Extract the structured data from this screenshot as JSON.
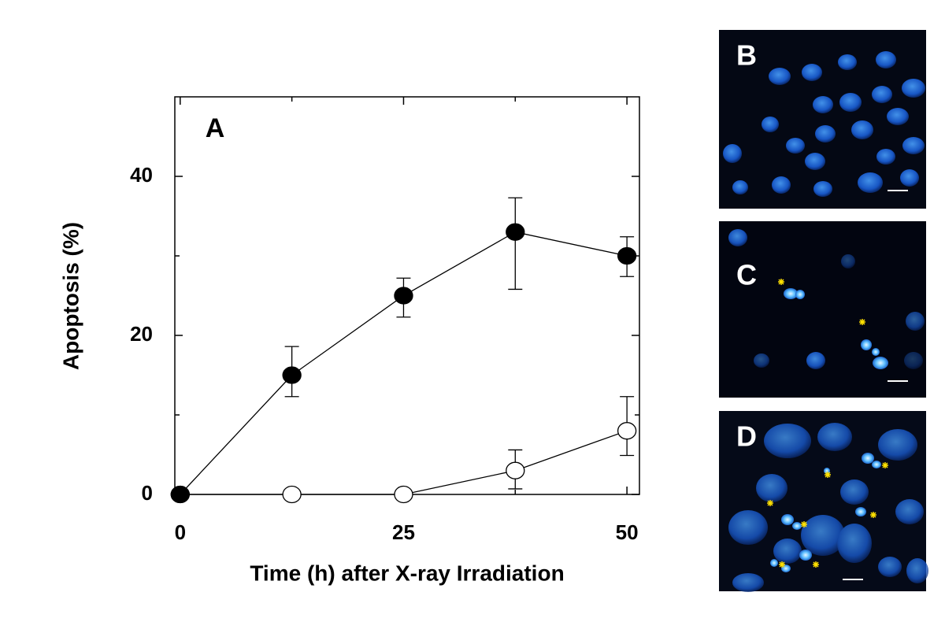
{
  "chart_data": {
    "type": "line",
    "xlabel": "Time (h) after X-ray Irradiation",
    "ylabel": "Apoptosis (%)",
    "panel_label": "A",
    "xlim": [
      -0.6,
      51.4
    ],
    "ylim": [
      0,
      50
    ],
    "xticks": [
      0,
      25,
      50
    ],
    "yticks": [
      0,
      20,
      40
    ],
    "xminor_ticks": [
      12.5,
      37.5
    ],
    "yminor_ticks": [
      10,
      30
    ],
    "series": [
      {
        "marker": "filled",
        "color": "#000000",
        "x": [
          0,
          12.5,
          25,
          37.5,
          50
        ],
        "values": [
          0,
          15,
          25,
          33,
          30
        ],
        "err_low": [
          0,
          2.7,
          2.7,
          7.2,
          2.6
        ],
        "err_high": [
          0,
          3.6,
          2.2,
          4.3,
          2.4
        ]
      },
      {
        "marker": "open",
        "color": "#000000",
        "x": [
          0,
          12.5,
          25,
          37.5,
          50
        ],
        "values": [
          0,
          0,
          0,
          3,
          8
        ],
        "err_low": [
          0,
          0,
          0,
          2.3,
          3.1
        ],
        "err_high": [
          0,
          0,
          0,
          2.6,
          4.3
        ]
      }
    ]
  },
  "image_panels": [
    "B",
    "C",
    "D"
  ]
}
